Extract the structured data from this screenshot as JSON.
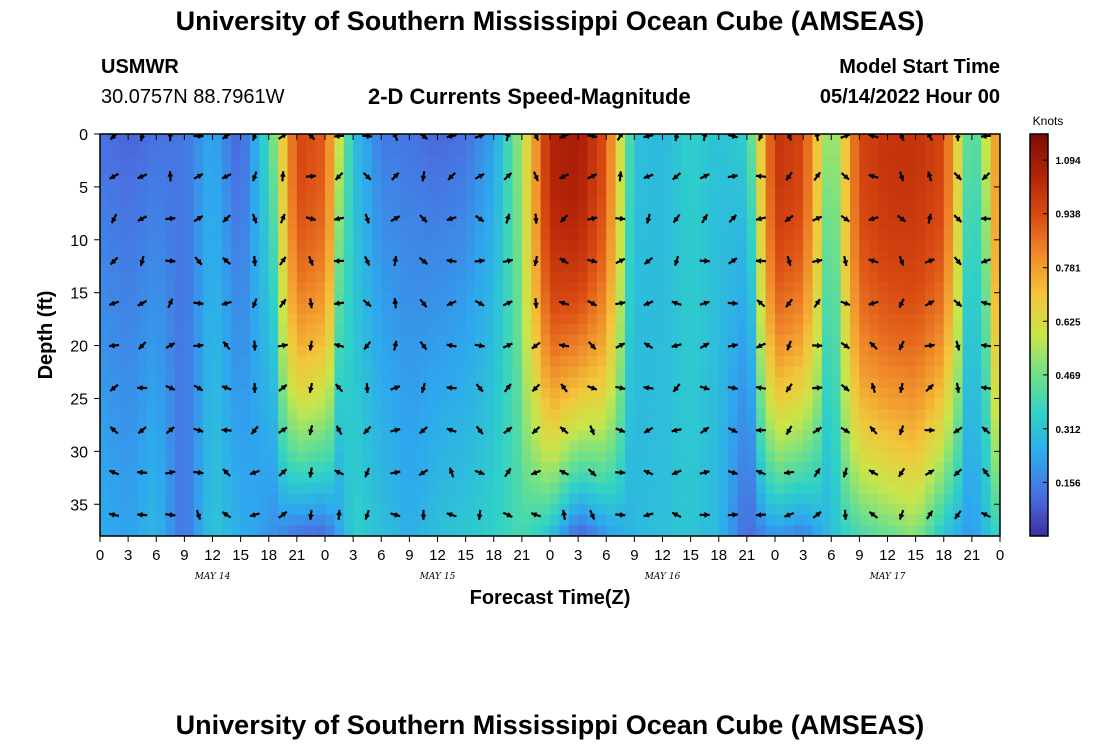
{
  "header": {
    "title": "University of Southern Mississippi Ocean Cube (AMSEAS)",
    "station": "USMWR",
    "coords": "30.0757N  88.7961W",
    "product": "2-D Currents Speed-Magnitude",
    "model_start_label": "Model Start Time",
    "model_start_value": "05/14/2022 Hour 00"
  },
  "footer": {
    "title": "University of Southern Mississippi Ocean Cube (AMSEAS)"
  },
  "colors": {
    "scale": [
      "#3b2fa3",
      "#4a6fe0",
      "#2ea8ee",
      "#2ed1c8",
      "#6fe08a",
      "#c8e64a",
      "#f3c53a",
      "#f08a2a",
      "#d94a12",
      "#b22208",
      "#7c0d05"
    ],
    "arrow": "#000000"
  },
  "chart_data": {
    "type": "heatmap",
    "title": "2-D Currents Speed-Magnitude",
    "xlabel": "Forecast Time(Z)",
    "ylabel": "Depth (ft)",
    "xlim": [
      0,
      96
    ],
    "ylim": [
      0,
      38
    ],
    "x_ticks": [
      0,
      3,
      6,
      9,
      12,
      15,
      18,
      21,
      24,
      27,
      30,
      33,
      36,
      39,
      42,
      45,
      48,
      51,
      54,
      57,
      60,
      63,
      66,
      69,
      72,
      75,
      78,
      81,
      84,
      87,
      90,
      93,
      96
    ],
    "x_tick_labels": [
      "0",
      "3",
      "6",
      "9",
      "12",
      "15",
      "18",
      "21",
      "0",
      "3",
      "6",
      "9",
      "12",
      "15",
      "18",
      "21",
      "0",
      "3",
      "6",
      "9",
      "12",
      "15",
      "18",
      "21",
      "0",
      "3",
      "6",
      "9",
      "12",
      "15",
      "18",
      "21",
      "0"
    ],
    "y_ticks": [
      0,
      5,
      10,
      15,
      20,
      25,
      30,
      35
    ],
    "y_tick_labels": [
      "0",
      "5",
      "10",
      "15",
      "20",
      "25",
      "30",
      "35"
    ],
    "day_labels": [
      {
        "text": "MAY 14",
        "x": 12
      },
      {
        "text": "MAY 15",
        "x": 36
      },
      {
        "text": "MAY 16",
        "x": 60
      },
      {
        "text": "MAY 17",
        "x": 84
      }
    ],
    "colorbar": {
      "unit": "Knots",
      "min": 0.0,
      "max": 1.17,
      "ticks": [
        0.156,
        0.312,
        0.469,
        0.625,
        0.781,
        0.938,
        1.094
      ],
      "tick_labels": [
        "0.156",
        "0.312",
        "0.469",
        "0.625",
        "0.781",
        "0.938",
        "1.094"
      ]
    },
    "arrow_depths_ft": [
      0,
      4,
      8,
      12,
      16,
      20,
      24,
      28,
      32,
      36
    ],
    "arrow_hours_step": 3,
    "speed_field_knots": {
      "description": "surface speed by forecast hour with depth profile shape",
      "hours": [
        0,
        3,
        6,
        9,
        12,
        15,
        18,
        21,
        24,
        27,
        30,
        33,
        36,
        39,
        42,
        45,
        48,
        51,
        54,
        57,
        60,
        63,
        66,
        69,
        72,
        75,
        78,
        81,
        84,
        87,
        90,
        93,
        96
      ],
      "surface": [
        0.12,
        0.1,
        0.12,
        0.13,
        0.24,
        0.08,
        0.4,
        0.95,
        0.9,
        0.3,
        0.14,
        0.13,
        0.1,
        0.12,
        0.22,
        0.55,
        1.05,
        1.08,
        0.92,
        0.3,
        0.28,
        0.35,
        0.3,
        0.35,
        1.0,
        0.95,
        0.45,
        0.95,
        1.0,
        1.0,
        0.95,
        0.35,
        0.85
      ],
      "bottom": [
        0.25,
        0.22,
        0.28,
        0.12,
        0.32,
        0.25,
        0.2,
        0.12,
        0.1,
        0.35,
        0.3,
        0.25,
        0.3,
        0.32,
        0.35,
        0.4,
        0.3,
        0.08,
        0.2,
        0.28,
        0.3,
        0.32,
        0.28,
        0.1,
        0.2,
        0.15,
        0.3,
        0.4,
        0.45,
        0.5,
        0.3,
        0.2,
        0.38
      ]
    }
  }
}
